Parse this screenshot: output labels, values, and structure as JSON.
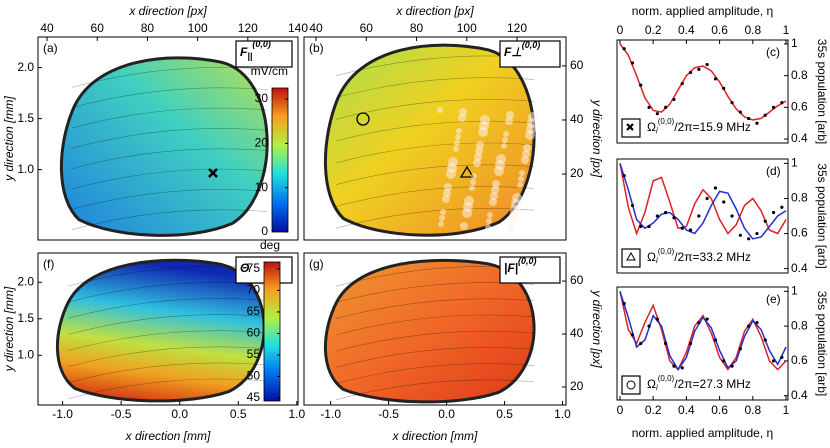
{
  "chart_data": [
    {
      "type": "heatmap",
      "label": "(a)",
      "symbol": "F",
      "symbol_sub": "||",
      "symbol_sup": "(0,0)",
      "xlabel_top": "x direction [px]",
      "xticks_top": [
        40,
        60,
        80,
        100,
        120,
        140
      ],
      "xlim_top": [
        36.4,
        140
      ],
      "ylabel": "y direction [mm]",
      "yticks": [
        {
          "value": 1,
          "label": "1.0"
        },
        1.5,
        {
          "value": 2,
          "label": "2.0"
        }
      ],
      "ylim": [
        0.31,
        2.3
      ],
      "colorbar": {
        "label": "mV/cm",
        "lim": [
          0,
          32.5
        ],
        "ticks": [
          0,
          10,
          20,
          30
        ]
      }
    },
    {
      "type": "heatmap",
      "label": "(b)",
      "symbol": "F⊥",
      "symbol_sup": "(0,0)",
      "xlabel_top": "x direction [px]",
      "xticks_top": [
        40,
        60,
        80,
        100,
        120
      ],
      "xlim_top": [
        35.2,
        139.5
      ],
      "ylabel_right": "y direction [px]",
      "yticks_right": [
        20,
        40,
        60
      ],
      "ylim_right": [
        -4.4,
        70.7
      ]
    },
    {
      "type": "heatmap",
      "label": "(f)",
      "symbol": "Θ",
      "xlabel": "x direction [mm]",
      "xticks": [
        {
          "value": -1,
          "label": "-1.0"
        },
        -0.5,
        {
          "value": 0,
          "label": "0.0"
        },
        0.5,
        {
          "value": 1,
          "label": "1.0"
        }
      ],
      "xlim": [
        -1.21,
        1.01
      ],
      "ylabel": "y direction [mm]",
      "yticks": [
        {
          "value": 1,
          "label": "1.0"
        },
        1.5,
        {
          "value": 2,
          "label": "2.0"
        }
      ],
      "ylim": [
        0.32,
        2.4
      ],
      "colorbar": {
        "label": "deg",
        "lim": [
          44.3,
          76.6
        ],
        "ticks": [
          45,
          50,
          55,
          60,
          65,
          70,
          75
        ]
      }
    },
    {
      "type": "heatmap",
      "label": "(g)",
      "symbol": "|F|",
      "symbol_sup": "(0,0)",
      "xlabel": "x direction [mm]",
      "xticks": [
        {
          "value": -1,
          "label": "-1.0"
        },
        -0.5,
        {
          "value": 0,
          "label": "0.0"
        },
        0.5,
        {
          "value": 1,
          "label": "1.0"
        }
      ],
      "xlim": [
        -1.23,
        1.03
      ],
      "ylabel_right": "y direction [px]",
      "yticks_right": [
        20,
        40,
        60
      ],
      "ylim_right": [
        13.2,
        70.6
      ]
    },
    {
      "type": "line",
      "label": "(c)",
      "annotation": "Ω",
      "annotation_sub": "i",
      "annotation_sup": "(0,0)",
      "annotation_rest": "/2π=15.9 MHz",
      "xlabel_top": "norm. applied amplitude, η",
      "xticks_top": [
        0,
        0.2,
        0.4,
        0.6,
        0.8,
        1
      ],
      "xlim": [
        -0.018,
        1.012
      ],
      "ylabel_right": "35s population [arb]",
      "yticks_right": [
        0.4,
        0.6,
        0.8,
        1
      ],
      "ylim": [
        0.375,
        1.025
      ],
      "x": [
        0,
        0.05,
        0.1,
        0.15,
        0.2,
        0.25,
        0.3,
        0.35,
        0.4,
        0.45,
        0.5,
        0.55,
        0.6,
        0.65,
        0.7,
        0.75,
        0.8,
        0.85,
        0.9,
        0.95,
        1
      ],
      "series": [
        {
          "color": "#e02020",
          "values": [
            1.0,
            0.93,
            0.8,
            0.66,
            0.58,
            0.57,
            0.62,
            0.71,
            0.8,
            0.85,
            0.86,
            0.83,
            0.76,
            0.67,
            0.59,
            0.54,
            0.52,
            0.53,
            0.57,
            0.61,
            0.64
          ]
        }
      ],
      "points": {
        "color": "#000000",
        "x": [
          0.025,
          0.075,
          0.125,
          0.175,
          0.225,
          0.275,
          0.325,
          0.375,
          0.425,
          0.475,
          0.525,
          0.575,
          0.625,
          0.675,
          0.725,
          0.775,
          0.825,
          0.875,
          0.925,
          0.975
        ],
        "values": [
          0.97,
          0.88,
          0.74,
          0.6,
          0.56,
          0.6,
          0.65,
          0.75,
          0.82,
          0.84,
          0.87,
          0.78,
          0.72,
          0.63,
          0.57,
          0.53,
          0.5,
          0.55,
          0.6,
          0.63
        ]
      }
    },
    {
      "type": "line",
      "label": "(d)",
      "annotation": "Ω",
      "annotation_sub": "i",
      "annotation_sup": "(0,0)",
      "annotation_rest": "/2π=33.2 MHz",
      "xlim": [
        -0.018,
        1.012
      ],
      "ylabel_right": "35s population [arb]",
      "yticks_right": [
        0.4,
        0.6,
        0.8,
        1
      ],
      "ylim": [
        0.375,
        1.025
      ],
      "x": [
        0,
        0.05,
        0.1,
        0.15,
        0.2,
        0.25,
        0.3,
        0.35,
        0.4,
        0.45,
        0.5,
        0.55,
        0.6,
        0.65,
        0.7,
        0.75,
        0.8,
        0.85,
        0.9,
        0.95,
        1
      ],
      "series": [
        {
          "color": "#e02020",
          "values": [
            1.0,
            0.75,
            0.6,
            0.72,
            0.9,
            0.92,
            0.78,
            0.63,
            0.64,
            0.77,
            0.85,
            0.8,
            0.68,
            0.6,
            0.65,
            0.76,
            0.8,
            0.73,
            0.62,
            0.6,
            0.68
          ]
        },
        {
          "color": "#2030d0",
          "values": [
            1.0,
            0.85,
            0.68,
            0.63,
            0.66,
            0.71,
            0.72,
            0.68,
            0.62,
            0.6,
            0.66,
            0.76,
            0.84,
            0.83,
            0.74,
            0.63,
            0.57,
            0.58,
            0.64,
            0.7,
            0.73
          ]
        }
      ],
      "points": {
        "color": "#000000",
        "x": [
          0.025,
          0.075,
          0.125,
          0.175,
          0.225,
          0.275,
          0.325,
          0.375,
          0.425,
          0.475,
          0.525,
          0.575,
          0.625,
          0.675,
          0.725,
          0.775,
          0.825,
          0.875,
          0.925,
          0.975
        ],
        "values": [
          0.93,
          0.76,
          0.64,
          0.64,
          0.7,
          0.72,
          0.69,
          0.63,
          0.62,
          0.7,
          0.8,
          0.86,
          0.78,
          0.7,
          0.59,
          0.57,
          0.6,
          0.67,
          0.72,
          0.75
        ]
      }
    },
    {
      "type": "line",
      "label": "(e)",
      "annotation": "Ω",
      "annotation_sub": "i",
      "annotation_sup": "(0,0)",
      "annotation_rest": "/2π=27.3 MHz",
      "xlabel": "norm. applied amplitude, η",
      "xticks": [
        0,
        0.2,
        0.4,
        0.6,
        0.8,
        1
      ],
      "xlim": [
        -0.018,
        1.012
      ],
      "ylabel_right": "35s population [arb]",
      "yticks_right": [
        0.4,
        0.6,
        0.8,
        1
      ],
      "ylim": [
        0.375,
        1.025
      ],
      "x": [
        0,
        0.05,
        0.1,
        0.15,
        0.2,
        0.25,
        0.3,
        0.35,
        0.4,
        0.45,
        0.5,
        0.55,
        0.6,
        0.65,
        0.7,
        0.75,
        0.8,
        0.85,
        0.9,
        0.95,
        1
      ],
      "series": [
        {
          "color": "#e02020",
          "values": [
            1.0,
            0.78,
            0.7,
            0.82,
            0.92,
            0.78,
            0.6,
            0.55,
            0.65,
            0.8,
            0.86,
            0.76,
            0.62,
            0.55,
            0.62,
            0.77,
            0.84,
            0.74,
            0.6,
            0.55,
            0.6
          ]
        },
        {
          "color": "#2030d0",
          "values": [
            1.0,
            0.85,
            0.68,
            0.72,
            0.86,
            0.8,
            0.63,
            0.55,
            0.62,
            0.77,
            0.85,
            0.79,
            0.66,
            0.56,
            0.6,
            0.74,
            0.83,
            0.78,
            0.66,
            0.58,
            0.68
          ]
        }
      ],
      "points": {
        "color": "#000000",
        "x": [
          0.025,
          0.075,
          0.125,
          0.175,
          0.225,
          0.275,
          0.325,
          0.375,
          0.425,
          0.475,
          0.525,
          0.575,
          0.625,
          0.675,
          0.725,
          0.775,
          0.825,
          0.875,
          0.925,
          0.975
        ],
        "values": [
          0.93,
          0.75,
          0.7,
          0.8,
          0.84,
          0.7,
          0.57,
          0.56,
          0.7,
          0.82,
          0.84,
          0.72,
          0.6,
          0.57,
          0.67,
          0.8,
          0.82,
          0.72,
          0.6,
          0.62
        ]
      }
    }
  ]
}
